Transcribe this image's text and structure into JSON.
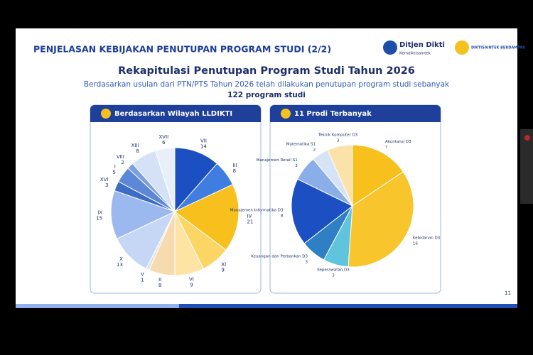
{
  "header": {
    "title": "PENJELASAN KEBIJAKAN PENUTUPAN PROGRAM STUDI (2/2)",
    "logo_name": "Ditjen Dikti",
    "logo_sub": "Kemdiktisaintek",
    "badge": "DIKTISAINTEK BERDAMPAK"
  },
  "slide": {
    "title": "Rekapitulasi Penutupan Program Studi Tahun 2026",
    "subtitle": "Berdasarkan usulan dari PTN/PTS Tahun 2026 telah dilakukan penutupan program studi sebanyak",
    "total": "122 program studi",
    "page": "11"
  },
  "chart_data": [
    {
      "type": "pie",
      "title": "Berdasarkan Wilayah LLDIKTI",
      "categories": [
        "VII",
        "III",
        "IV",
        "XI",
        "VI",
        "II",
        "V",
        "X",
        "IX",
        "XVI",
        "I",
        "VIII",
        "XIII",
        "XVII"
      ],
      "values": [
        14,
        8,
        21,
        9,
        9,
        8,
        1,
        13,
        15,
        3,
        5,
        2,
        8,
        6
      ],
      "colors": [
        "#1b4fc2",
        "#3f7de0",
        "#f8c01c",
        "#fbd665",
        "#fde4a4",
        "#f6dbb0",
        "#e3e3e3",
        "#c6d7f5",
        "#9bb9ee",
        "#3c6cc6",
        "#5d88d6",
        "#7c9fdf",
        "#d4e1f7",
        "#e8eff9"
      ]
    },
    {
      "type": "pie",
      "title": "11 Prodi Terbanyak",
      "categories": [
        "Akuntansi D3",
        "Kebidanan D3",
        "Keperawatan D3",
        "Keuangan dan Perbankan D3",
        "Manajemen Informatika D3",
        "Manajemen Retail S1",
        "Matematika S1",
        "Teknik Komputer D3"
      ],
      "values": [
        7,
        16,
        3,
        3,
        8,
        3,
        2,
        3
      ],
      "colors": [
        "#f8c01c",
        "#f9c52c",
        "#5fc4dc",
        "#2f7fc4",
        "#1b4fc2",
        "#8aaee8",
        "#d6e2f6",
        "#fbe2a8"
      ]
    }
  ]
}
